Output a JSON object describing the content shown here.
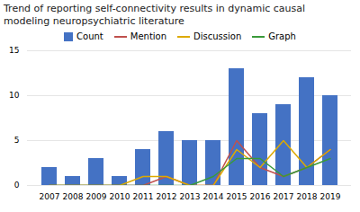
{
  "chart_data": {
    "type": "bar",
    "title": "Trend of reporting self-connectivity results in dynamic causal\nmodeling neuropsychiatric literature",
    "categories": [
      "2007",
      "2008",
      "2009",
      "2010",
      "2011",
      "2012",
      "2013",
      "2014",
      "2015",
      "2016",
      "2017",
      "2018",
      "2019"
    ],
    "series": [
      {
        "name": "Count",
        "type": "bar",
        "color": "#4472C4",
        "values": [
          2,
          1,
          3,
          1,
          4,
          6,
          5,
          5,
          13,
          8,
          9,
          12,
          10
        ]
      },
      {
        "name": "Mention",
        "type": "line",
        "color": "#C0504D",
        "values": [
          0,
          0,
          0,
          0,
          0,
          1,
          0,
          0,
          5,
          2,
          1,
          2,
          4
        ]
      },
      {
        "name": "Discussion",
        "type": "line",
        "color": "#DDAA00",
        "values": [
          0,
          0,
          0,
          0,
          1,
          1,
          0,
          0,
          4,
          2,
          5,
          2,
          4
        ]
      },
      {
        "name": "Graph",
        "type": "line",
        "color": "#3A9A3A",
        "values": [
          0,
          0,
          0,
          0,
          0,
          0,
          0,
          1,
          3,
          3,
          1,
          2,
          3
        ]
      }
    ],
    "ylim": [
      0,
      15
    ],
    "yticks": [
      0,
      5,
      10,
      15
    ],
    "grid": true,
    "legend": "top"
  }
}
